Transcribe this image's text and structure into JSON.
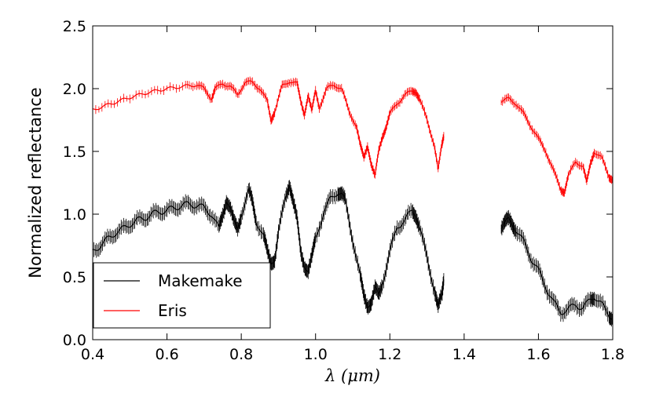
{
  "chart_data": {
    "type": "line",
    "title": "",
    "xlabel": "λ (μm)",
    "ylabel": "Normalized reflectance",
    "xlim": [
      0.4,
      1.8
    ],
    "ylim": [
      0.0,
      2.5
    ],
    "x_ticks": [
      "0.4",
      "0.6",
      "0.8",
      "1.0",
      "1.2",
      "1.4",
      "1.6",
      "1.8"
    ],
    "y_ticks": [
      "0.0",
      "0.5",
      "1.0",
      "1.5",
      "2.0",
      "2.5"
    ],
    "grid": false,
    "error_bars": true,
    "legend_position": "lower-left",
    "series": [
      {
        "name": "Makemake",
        "color": "#000000",
        "segments": [
          [
            [
              0.4,
              0.7
            ],
            [
              0.42,
              0.75
            ],
            [
              0.44,
              0.8
            ],
            [
              0.46,
              0.85
            ],
            [
              0.48,
              0.88
            ],
            [
              0.5,
              0.92
            ],
            [
              0.52,
              0.95
            ],
            [
              0.54,
              0.97
            ],
            [
              0.56,
              1.0
            ],
            [
              0.58,
              1.02
            ],
            [
              0.6,
              1.03
            ],
            [
              0.62,
              1.05
            ],
            [
              0.64,
              1.07
            ],
            [
              0.66,
              1.08
            ],
            [
              0.68,
              1.07
            ],
            [
              0.7,
              1.05
            ],
            [
              0.72,
              1.0
            ],
            [
              0.74,
              0.88
            ],
            [
              0.75,
              1.0
            ],
            [
              0.76,
              1.12
            ],
            [
              0.77,
              1.05
            ],
            [
              0.78,
              0.93
            ],
            [
              0.79,
              0.88
            ],
            [
              0.8,
              1.0
            ],
            [
              0.82,
              1.18
            ],
            [
              0.83,
              1.1
            ],
            [
              0.84,
              0.95
            ],
            [
              0.86,
              0.82
            ],
            [
              0.87,
              0.7
            ],
            [
              0.88,
              0.62
            ],
            [
              0.89,
              0.65
            ],
            [
              0.9,
              0.85
            ],
            [
              0.92,
              1.15
            ],
            [
              0.93,
              1.25
            ],
            [
              0.94,
              1.1
            ],
            [
              0.95,
              0.95
            ],
            [
              0.96,
              0.7
            ],
            [
              0.97,
              0.6
            ],
            [
              0.98,
              0.55
            ],
            [
              0.99,
              0.65
            ],
            [
              1.0,
              0.8
            ],
            [
              1.02,
              1.0
            ],
            [
              1.04,
              1.12
            ],
            [
              1.06,
              1.18
            ],
            [
              1.07,
              1.16
            ],
            [
              1.08,
              1.1
            ],
            [
              1.1,
              0.8
            ],
            [
              1.12,
              0.5
            ],
            [
              1.13,
              0.35
            ],
            [
              1.14,
              0.28
            ],
            [
              1.15,
              0.3
            ],
            [
              1.16,
              0.4
            ],
            [
              1.17,
              0.35
            ],
            [
              1.18,
              0.45
            ],
            [
              1.2,
              0.7
            ],
            [
              1.22,
              0.9
            ],
            [
              1.24,
              0.95
            ],
            [
              1.26,
              1.03
            ],
            [
              1.27,
              1.0
            ],
            [
              1.28,
              0.9
            ],
            [
              1.3,
              0.65
            ],
            [
              1.32,
              0.4
            ],
            [
              1.33,
              0.25
            ],
            [
              1.34,
              0.35
            ],
            [
              1.345,
              0.48
            ]
          ],
          [
            [
              1.5,
              0.9
            ],
            [
              1.51,
              0.93
            ],
            [
              1.52,
              0.95
            ],
            [
              1.53,
              0.92
            ],
            [
              1.54,
              0.88
            ],
            [
              1.56,
              0.78
            ],
            [
              1.58,
              0.65
            ],
            [
              1.6,
              0.55
            ],
            [
              1.62,
              0.42
            ],
            [
              1.64,
              0.3
            ],
            [
              1.66,
              0.22
            ],
            [
              1.68,
              0.24
            ],
            [
              1.7,
              0.28
            ],
            [
              1.72,
              0.25
            ],
            [
              1.74,
              0.32
            ],
            [
              1.75,
              0.35
            ],
            [
              1.77,
              0.28
            ],
            [
              1.79,
              0.2
            ],
            [
              1.8,
              0.18
            ]
          ]
        ]
      },
      {
        "name": "Eris",
        "color": "#ff0000",
        "segments": [
          [
            [
              0.4,
              1.83
            ],
            [
              0.45,
              1.88
            ],
            [
              0.5,
              1.93
            ],
            [
              0.55,
              1.97
            ],
            [
              0.6,
              2.0
            ],
            [
              0.65,
              2.02
            ],
            [
              0.68,
              2.03
            ],
            [
              0.7,
              2.0
            ],
            [
              0.72,
              1.92
            ],
            [
              0.73,
              2.0
            ],
            [
              0.75,
              2.04
            ],
            [
              0.77,
              2.02
            ],
            [
              0.79,
              1.95
            ],
            [
              0.81,
              2.05
            ],
            [
              0.83,
              2.05
            ],
            [
              0.85,
              2.0
            ],
            [
              0.87,
              1.9
            ],
            [
              0.88,
              1.75
            ],
            [
              0.89,
              1.82
            ],
            [
              0.91,
              2.02
            ],
            [
              0.93,
              2.06
            ],
            [
              0.95,
              2.04
            ],
            [
              0.96,
              1.9
            ],
            [
              0.97,
              1.8
            ],
            [
              0.98,
              1.95
            ],
            [
              0.99,
              1.82
            ],
            [
              1.0,
              1.98
            ],
            [
              1.01,
              1.85
            ],
            [
              1.03,
              2.0
            ],
            [
              1.05,
              2.03
            ],
            [
              1.07,
              2.0
            ],
            [
              1.09,
              1.82
            ],
            [
              1.11,
              1.7
            ],
            [
              1.12,
              1.55
            ],
            [
              1.13,
              1.45
            ],
            [
              1.14,
              1.55
            ],
            [
              1.15,
              1.4
            ],
            [
              1.16,
              1.3
            ],
            [
              1.17,
              1.5
            ],
            [
              1.18,
              1.62
            ],
            [
              1.19,
              1.7
            ],
            [
              1.2,
              1.8
            ],
            [
              1.22,
              1.88
            ],
            [
              1.24,
              1.95
            ],
            [
              1.26,
              1.98
            ],
            [
              1.27,
              1.98
            ],
            [
              1.28,
              1.92
            ],
            [
              1.3,
              1.75
            ],
            [
              1.32,
              1.55
            ],
            [
              1.33,
              1.35
            ],
            [
              1.34,
              1.55
            ],
            [
              1.345,
              1.62
            ]
          ],
          [
            [
              1.5,
              1.9
            ],
            [
              1.52,
              1.92
            ],
            [
              1.54,
              1.88
            ],
            [
              1.56,
              1.8
            ],
            [
              1.58,
              1.7
            ],
            [
              1.6,
              1.6
            ],
            [
              1.62,
              1.5
            ],
            [
              1.64,
              1.35
            ],
            [
              1.66,
              1.2
            ],
            [
              1.67,
              1.18
            ],
            [
              1.68,
              1.3
            ],
            [
              1.7,
              1.42
            ],
            [
              1.72,
              1.38
            ],
            [
              1.73,
              1.25
            ],
            [
              1.74,
              1.4
            ],
            [
              1.75,
              1.5
            ],
            [
              1.77,
              1.45
            ],
            [
              1.79,
              1.3
            ],
            [
              1.8,
              1.28
            ]
          ]
        ]
      }
    ]
  }
}
